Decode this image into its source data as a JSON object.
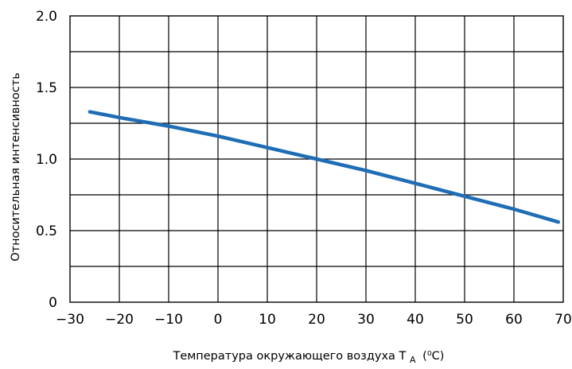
{
  "chart_data": {
    "type": "line",
    "title": "",
    "xlabel": "Температура окружающего воздуха T",
    "xlabel_subscript": "A",
    "xlabel_unit": "(⁰C)",
    "ylabel": "Относительная интенсивность",
    "xlim": [
      -30,
      70
    ],
    "ylim": [
      0,
      2.0
    ],
    "x_ticks": [
      -30,
      -20,
      -10,
      0,
      10,
      20,
      30,
      40,
      50,
      60,
      70
    ],
    "x_tick_labels": [
      "−30",
      "−20",
      "−10",
      "0",
      "10",
      "20",
      "30",
      "40",
      "50",
      "60",
      "70"
    ],
    "y_ticks": [
      0,
      0.5,
      1.0,
      1.5,
      2.0
    ],
    "y_tick_labels": [
      "0",
      "0.5",
      "1.0",
      "1.5",
      "2.0"
    ],
    "grid": true,
    "line_color": "#1f6db5",
    "series": [
      {
        "x": [
          -26,
          -20,
          -10,
          0,
          10,
          20,
          30,
          40,
          50,
          60,
          69
        ],
        "y": [
          1.33,
          1.29,
          1.23,
          1.16,
          1.08,
          1.0,
          0.92,
          0.83,
          0.74,
          0.65,
          0.56
        ]
      }
    ]
  }
}
